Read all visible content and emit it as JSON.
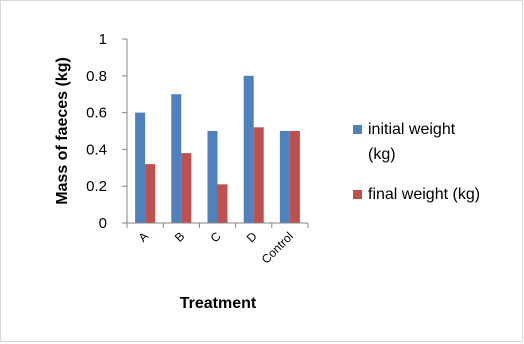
{
  "chart_data": {
    "type": "bar",
    "title": "",
    "xlabel": "Treatment",
    "ylabel": "Mass of faeces (kg)",
    "ylim": [
      0,
      1
    ],
    "yticks": [
      "0",
      "0.2",
      "0.4",
      "0.6",
      "0.8",
      "1"
    ],
    "categories": [
      "A",
      "B",
      "C",
      "D",
      "Control"
    ],
    "series": [
      {
        "name": "initial weight (kg)",
        "legend_lines": [
          "initial weight",
          "(kg)"
        ],
        "color": "#4f81bd",
        "values": [
          0.6,
          0.7,
          0.5,
          0.8,
          0.5
        ]
      },
      {
        "name": "final weight (kg)",
        "legend_lines": [
          "final weight (kg)"
        ],
        "color": "#c0504d",
        "values": [
          0.32,
          0.38,
          0.21,
          0.52,
          0.5
        ]
      }
    ],
    "grid": false,
    "legend_position": "right"
  }
}
